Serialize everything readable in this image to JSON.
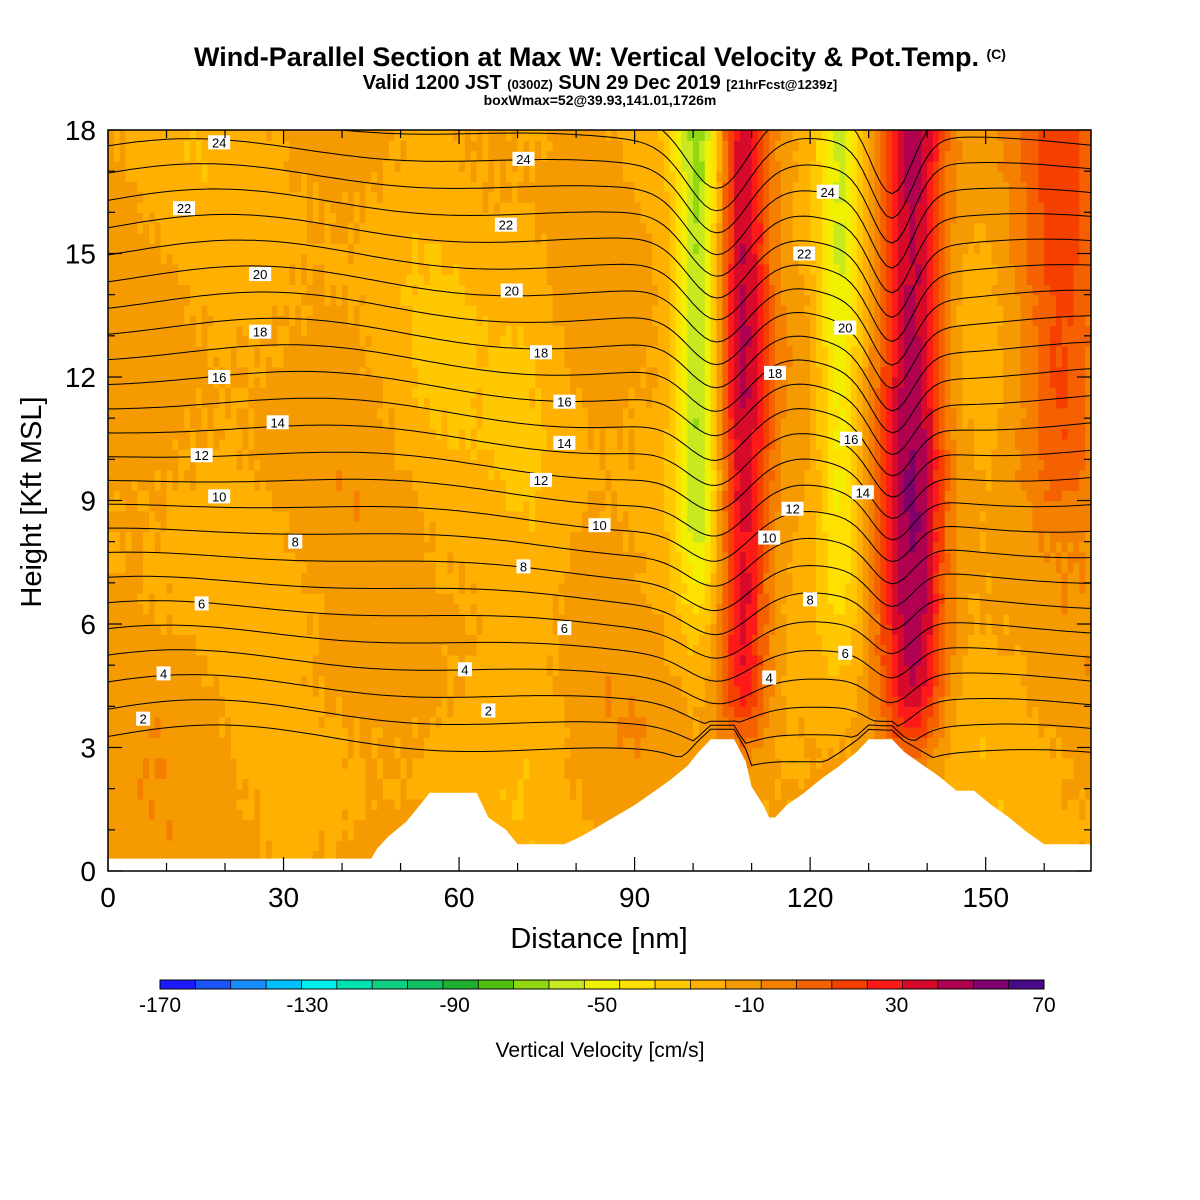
{
  "header": {
    "title": "Wind-Parallel Section at Max W: Vertical Velocity & Pot.Temp.",
    "copyright": "(C)",
    "valid_prefix": "Valid 1200 JST",
    "valid_utc": "(0300Z)",
    "valid_date": "SUN 29 Dec 2019",
    "forecast": "[21hrFcst@1239z]",
    "box_info": "boxWmax=52@39.93,141.01,1726m"
  },
  "colors": {
    "bg": "#f5a300",
    "terrain": "#ffffff",
    "contour": "#000000"
  },
  "chart_data": {
    "type": "heatmap",
    "xlabel": "Distance [nm]",
    "ylabel": "Height [Kft MSL]",
    "xlim": [
      0,
      168
    ],
    "ylim": [
      0,
      18
    ],
    "xticks": [
      0,
      30,
      60,
      90,
      120,
      150
    ],
    "yticks": [
      0,
      3,
      6,
      9,
      12,
      15,
      18
    ],
    "colorbar": {
      "label": "Vertical Velocity [cm/s]",
      "min": -170,
      "max": 70,
      "step": 10,
      "tick_labels": [
        "-170",
        "-130",
        "-90",
        "-50",
        "-10",
        "30",
        "70"
      ],
      "colors": [
        "#1a1aff",
        "#1c55f5",
        "#1a8cff",
        "#00bfff",
        "#00f0f0",
        "#00e0b0",
        "#10d080",
        "#10c060",
        "#20b030",
        "#50c010",
        "#90d810",
        "#c8e820",
        "#f0f000",
        "#ffe000",
        "#ffc800",
        "#ffb000",
        "#f59a00",
        "#f58000",
        "#f56000",
        "#f54000",
        "#ff1a1a",
        "#d70a2a",
        "#b00050",
        "#80006c",
        "#4a0a8c"
      ]
    },
    "terrain": [
      [
        0,
        0.3
      ],
      [
        45,
        0.3
      ],
      [
        46,
        0.55
      ],
      [
        48,
        0.85
      ],
      [
        51,
        1.2
      ],
      [
        53,
        1.55
      ],
      [
        55,
        1.9
      ],
      [
        63,
        1.9
      ],
      [
        65,
        1.3
      ],
      [
        68,
        1.0
      ],
      [
        70,
        0.65
      ],
      [
        78,
        0.65
      ],
      [
        81,
        0.85
      ],
      [
        84,
        1.1
      ],
      [
        87,
        1.35
      ],
      [
        90,
        1.6
      ],
      [
        93,
        1.9
      ],
      [
        96,
        2.2
      ],
      [
        99,
        2.55
      ],
      [
        101,
        2.9
      ],
      [
        103,
        3.2
      ],
      [
        107,
        3.2
      ],
      [
        109,
        2.65
      ],
      [
        110,
        2.05
      ],
      [
        112,
        1.6
      ],
      [
        113,
        1.3
      ],
      [
        114,
        1.3
      ],
      [
        116,
        1.6
      ],
      [
        119,
        1.9
      ],
      [
        122,
        2.25
      ],
      [
        125,
        2.55
      ],
      [
        128,
        2.9
      ],
      [
        130,
        3.2
      ],
      [
        134,
        3.2
      ],
      [
        136,
        2.9
      ],
      [
        139,
        2.6
      ],
      [
        142,
        2.3
      ],
      [
        145,
        1.95
      ],
      [
        148,
        1.95
      ],
      [
        151,
        1.6
      ],
      [
        154,
        1.3
      ],
      [
        157,
        0.95
      ],
      [
        160,
        0.65
      ],
      [
        165,
        0.65
      ],
      [
        168,
        0.65
      ]
    ],
    "field": {
      "background_wms": -10,
      "updrafts": [
        {
          "center_x": 108.5,
          "half_width": 4.5,
          "base_km": 3.5,
          "peak": 60
        },
        {
          "center_x": 137.5,
          "half_width": 5.5,
          "base_km": 3.2,
          "peak": 70
        },
        {
          "center_x": 163,
          "half_width": 7,
          "base_km": 9,
          "peak": 30
        }
      ],
      "downdrafts": [
        {
          "center_x": 101,
          "half_width": 4,
          "base_km": 7,
          "peak": -50
        },
        {
          "center_x": 125,
          "half_width": 4,
          "base_km": 6,
          "peak": -40
        }
      ]
    },
    "isentropes": {
      "levels": [
        0,
        1,
        2,
        3,
        4,
        5,
        6,
        7,
        8,
        9,
        10,
        11,
        12,
        13,
        14,
        15,
        16,
        17,
        18,
        19,
        20,
        21,
        22,
        23,
        24,
        25
      ],
      "labels": [
        {
          "text": "2",
          "x": 6,
          "y": 3.7
        },
        {
          "text": "4",
          "x": 9.5,
          "y": 4.8
        },
        {
          "text": "6",
          "x": 16,
          "y": 6.5
        },
        {
          "text": "8",
          "x": 32,
          "y": 8.0
        },
        {
          "text": "10",
          "x": 19,
          "y": 9.1
        },
        {
          "text": "12",
          "x": 16,
          "y": 10.1
        },
        {
          "text": "14",
          "x": 29,
          "y": 10.9
        },
        {
          "text": "16",
          "x": 19,
          "y": 12.0
        },
        {
          "text": "18",
          "x": 26,
          "y": 13.1
        },
        {
          "text": "20",
          "x": 26,
          "y": 14.5
        },
        {
          "text": "22",
          "x": 13,
          "y": 16.1
        },
        {
          "text": "24",
          "x": 19,
          "y": 17.7
        },
        {
          "text": "2",
          "x": 65,
          "y": 3.9
        },
        {
          "text": "4",
          "x": 61,
          "y": 4.9
        },
        {
          "text": "6",
          "x": 78,
          "y": 5.9
        },
        {
          "text": "8",
          "x": 71,
          "y": 7.4
        },
        {
          "text": "10",
          "x": 84,
          "y": 8.4
        },
        {
          "text": "12",
          "x": 74,
          "y": 9.5
        },
        {
          "text": "14",
          "x": 78,
          "y": 10.4
        },
        {
          "text": "16",
          "x": 78,
          "y": 11.4
        },
        {
          "text": "18",
          "x": 74,
          "y": 12.6
        },
        {
          "text": "20",
          "x": 69,
          "y": 14.1
        },
        {
          "text": "22",
          "x": 68,
          "y": 15.7
        },
        {
          "text": "24",
          "x": 71,
          "y": 17.3
        },
        {
          "text": "4",
          "x": 113,
          "y": 4.7
        },
        {
          "text": "6",
          "x": 126,
          "y": 5.3
        },
        {
          "text": "8",
          "x": 120,
          "y": 6.6
        },
        {
          "text": "10",
          "x": 113,
          "y": 8.1
        },
        {
          "text": "12",
          "x": 117,
          "y": 8.8
        },
        {
          "text": "14",
          "x": 129,
          "y": 9.2
        },
        {
          "text": "16",
          "x": 127,
          "y": 10.5
        },
        {
          "text": "18",
          "x": 114,
          "y": 12.1
        },
        {
          "text": "20",
          "x": 126,
          "y": 13.2
        },
        {
          "text": "22",
          "x": 119,
          "y": 15.0
        },
        {
          "text": "24",
          "x": 123,
          "y": 16.5
        }
      ]
    }
  }
}
